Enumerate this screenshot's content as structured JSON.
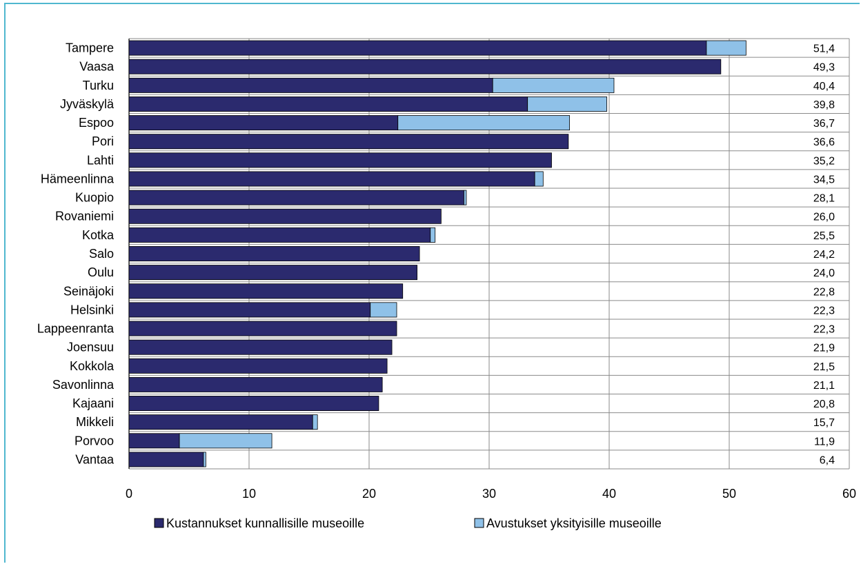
{
  "chart_data": {
    "type": "bar",
    "orientation": "horizontal",
    "stacked": true,
    "title": "",
    "xlabel": "",
    "ylabel": "",
    "xlim": [
      0,
      60
    ],
    "x_ticks": [
      0,
      10,
      20,
      30,
      40,
      50,
      60
    ],
    "grid": "vertical",
    "legend_position": "bottom",
    "categories": [
      "Tampere",
      "Vaasa",
      "Turku",
      "Jyväskylä",
      "Espoo",
      "Pori",
      "Lahti",
      "Hämeenlinna",
      "Kuopio",
      "Rovaniemi",
      "Kotka",
      "Salo",
      "Oulu",
      "Seinäjoki",
      "Helsinki",
      "Lappeenranta",
      "Joensuu",
      "Kokkola",
      "Savonlinna",
      "Kajaani",
      "Mikkeli",
      "Porvoo",
      "Vantaa"
    ],
    "series": [
      {
        "name": "Kustannukset kunnallisille museoille",
        "color": "#2b2a6e",
        "values": [
          48.1,
          49.3,
          30.3,
          33.2,
          22.4,
          36.6,
          35.2,
          33.8,
          27.9,
          26.0,
          25.1,
          24.2,
          24.0,
          22.8,
          20.1,
          22.3,
          21.9,
          21.5,
          21.1,
          20.8,
          15.3,
          4.2,
          6.2
        ]
      },
      {
        "name": "Avustukset yksityisille museoille",
        "color": "#8fc1e8",
        "values": [
          3.3,
          0,
          10.1,
          6.6,
          14.3,
          0,
          0,
          0.7,
          0.2,
          0,
          0.4,
          0,
          0,
          0,
          2.2,
          0,
          0,
          0,
          0,
          0,
          0.4,
          7.7,
          0.2
        ]
      }
    ],
    "totals": [
      "51,4",
      "49,3",
      "40,4",
      "39,8",
      "36,7",
      "36,6",
      "35,2",
      "34,5",
      "28,1",
      "26,0",
      "25,5",
      "24,2",
      "24,0",
      "22,8",
      "22,3",
      "22,3",
      "21,9",
      "21,5",
      "21,1",
      "20,8",
      "15,7",
      "11,9",
      "6,4"
    ]
  }
}
